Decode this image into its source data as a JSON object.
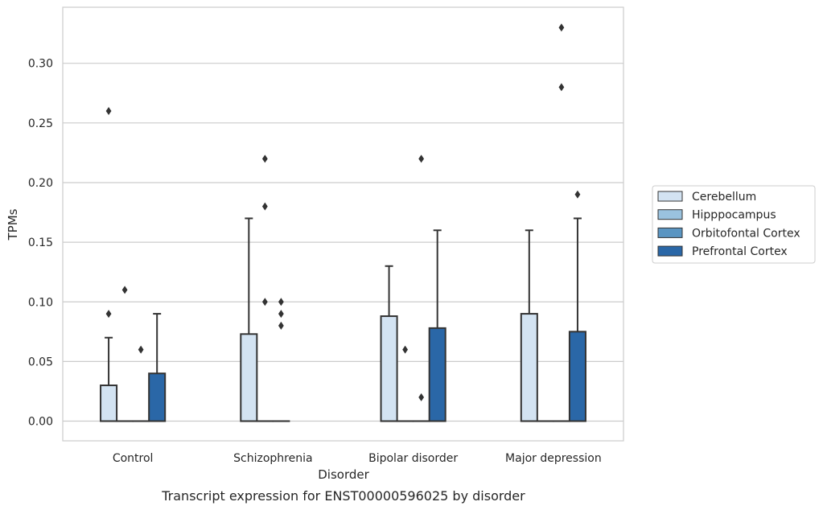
{
  "chart_data": {
    "type": "box",
    "caption": "Transcript expression for ENST00000596025 by disorder",
    "xlabel": "Disorder",
    "ylabel": "TPMs",
    "ylim": [
      -0.0165,
      0.347
    ],
    "yticks": [
      0.0,
      0.05,
      0.1,
      0.15,
      0.2,
      0.25,
      0.3
    ],
    "ytick_labels": [
      "0.00",
      "0.05",
      "0.10",
      "0.15",
      "0.20",
      "0.25",
      "0.30"
    ],
    "grid": true,
    "legend_position": "right",
    "categories": [
      "Control",
      "Schizophrenia",
      "Bipolar disorder",
      "Major depression"
    ],
    "series": [
      {
        "name": "Cerebellum",
        "color": "#d3e3f2",
        "boxes": [
          {
            "q1": 0.0,
            "median": 0.0,
            "q3": 0.03,
            "whisker_low": 0.0,
            "whisker_high": 0.07,
            "outliers": [
              0.09,
              0.26
            ]
          },
          {
            "q1": 0.0,
            "median": 0.0,
            "q3": 0.073,
            "whisker_low": 0.0,
            "whisker_high": 0.17,
            "outliers": []
          },
          {
            "q1": 0.0,
            "median": 0.0,
            "q3": 0.088,
            "whisker_low": 0.0,
            "whisker_high": 0.13,
            "outliers": []
          },
          {
            "q1": 0.0,
            "median": 0.0,
            "q3": 0.09,
            "whisker_low": 0.0,
            "whisker_high": 0.16,
            "outliers": []
          }
        ]
      },
      {
        "name": "Hipppocampus",
        "color": "#9ac2de",
        "boxes": [
          {
            "q1": 0.0,
            "median": 0.0,
            "q3": 0.0,
            "whisker_low": 0.0,
            "whisker_high": 0.0,
            "outliers": [
              0.11
            ]
          },
          {
            "q1": 0.0,
            "median": 0.0,
            "q3": 0.0,
            "whisker_low": 0.0,
            "whisker_high": 0.0,
            "outliers": [
              0.1,
              0.18,
              0.22
            ]
          },
          {
            "q1": 0.0,
            "median": 0.0,
            "q3": 0.0,
            "whisker_low": 0.0,
            "whisker_high": 0.0,
            "outliers": [
              0.06
            ]
          },
          {
            "q1": 0.0,
            "median": 0.0,
            "q3": 0.0,
            "whisker_low": 0.0,
            "whisker_high": 0.0,
            "outliers": []
          }
        ]
      },
      {
        "name": "Orbitofontal Cortex",
        "color": "#5a95c2",
        "boxes": [
          {
            "q1": 0.0,
            "median": 0.0,
            "q3": 0.0,
            "whisker_low": 0.0,
            "whisker_high": 0.0,
            "outliers": [
              0.06
            ]
          },
          {
            "q1": 0.0,
            "median": 0.0,
            "q3": 0.0,
            "whisker_low": 0.0,
            "whisker_high": 0.0,
            "outliers": [
              0.08,
              0.09,
              0.1
            ]
          },
          {
            "q1": 0.0,
            "median": 0.0,
            "q3": 0.0,
            "whisker_low": 0.0,
            "whisker_high": 0.0,
            "outliers": [
              0.02,
              0.22
            ]
          },
          {
            "q1": 0.0,
            "median": 0.0,
            "q3": 0.0,
            "whisker_low": 0.0,
            "whisker_high": 0.0,
            "outliers": [
              0.28,
              0.33
            ]
          }
        ]
      },
      {
        "name": "Prefrontal Cortex",
        "color": "#2a67a7",
        "boxes": [
          {
            "q1": 0.0,
            "median": 0.0,
            "q3": 0.04,
            "whisker_low": 0.0,
            "whisker_high": 0.09,
            "outliers": []
          },
          null,
          {
            "q1": 0.0,
            "median": 0.0,
            "q3": 0.078,
            "whisker_low": 0.0,
            "whisker_high": 0.16,
            "outliers": []
          },
          {
            "q1": 0.0,
            "median": 0.0,
            "q3": 0.075,
            "whisker_low": 0.0,
            "whisker_high": 0.17,
            "outliers": [
              0.19
            ]
          }
        ]
      }
    ]
  }
}
